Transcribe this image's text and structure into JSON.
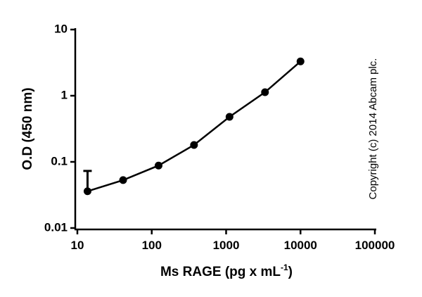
{
  "chart_data": {
    "type": "scatter",
    "x_label": {
      "text": "Ms RAGE (pg x mL",
      "superscript": "-1",
      "suffix": ")"
    },
    "y_label": "O.D (450 nm)",
    "annotation": "Copyright (c) 2014 Abcam plc.",
    "x": [
      13.7,
      41.2,
      123.5,
      370,
      1111,
      3333,
      10000
    ],
    "series": [
      {
        "color": "#000000",
        "values": [
          0.036,
          0.053,
          0.088,
          0.18,
          0.48,
          1.13,
          3.3
        ],
        "errors": [
          0.037,
          null,
          null,
          null,
          null,
          null,
          null
        ]
      }
    ],
    "xlim": [
      10,
      100000
    ],
    "xticks": [
      10,
      100,
      1000,
      10000,
      100000
    ],
    "ylim": [
      0.01,
      10
    ],
    "yticks": [
      0.01,
      0.1,
      1,
      10
    ],
    "xscale": "log",
    "yscale": "log"
  }
}
